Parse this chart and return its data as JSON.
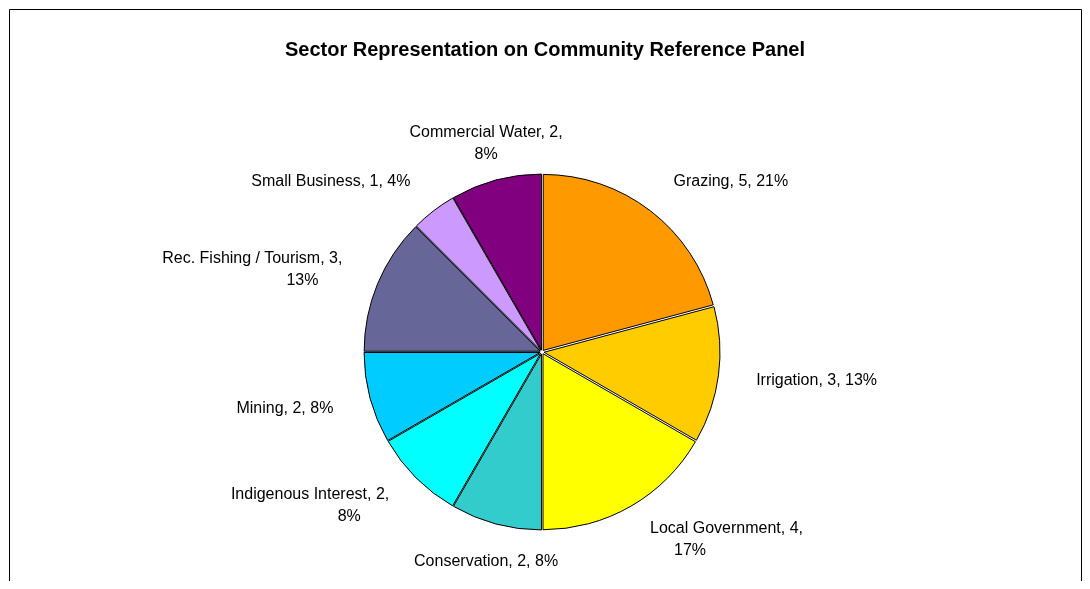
{
  "chart_data": {
    "type": "pie",
    "title": "Sector Representation on Community Reference Panel",
    "categories": [
      "Grazing",
      "Irrigation",
      "Local Government",
      "Conservation",
      "Indigenous Interest",
      "Mining",
      "Rec. Fishing / Tourism",
      "Small Business",
      "Commercial Water"
    ],
    "values": [
      5,
      3,
      4,
      2,
      2,
      2,
      3,
      1,
      2
    ],
    "value_labels": [
      "5, 21%",
      "3, 13%",
      "4, 17%",
      "2, 8%",
      "2, 8%",
      "2, 8%",
      "3, 13%",
      "1, 4%",
      "2, 8%"
    ],
    "colors": [
      "#ff9900",
      "#ffcc00",
      "#ffff00",
      "#33cccc",
      "#00ffff",
      "#00ccff",
      "#666699",
      "#cc99ff",
      "#800080"
    ]
  }
}
